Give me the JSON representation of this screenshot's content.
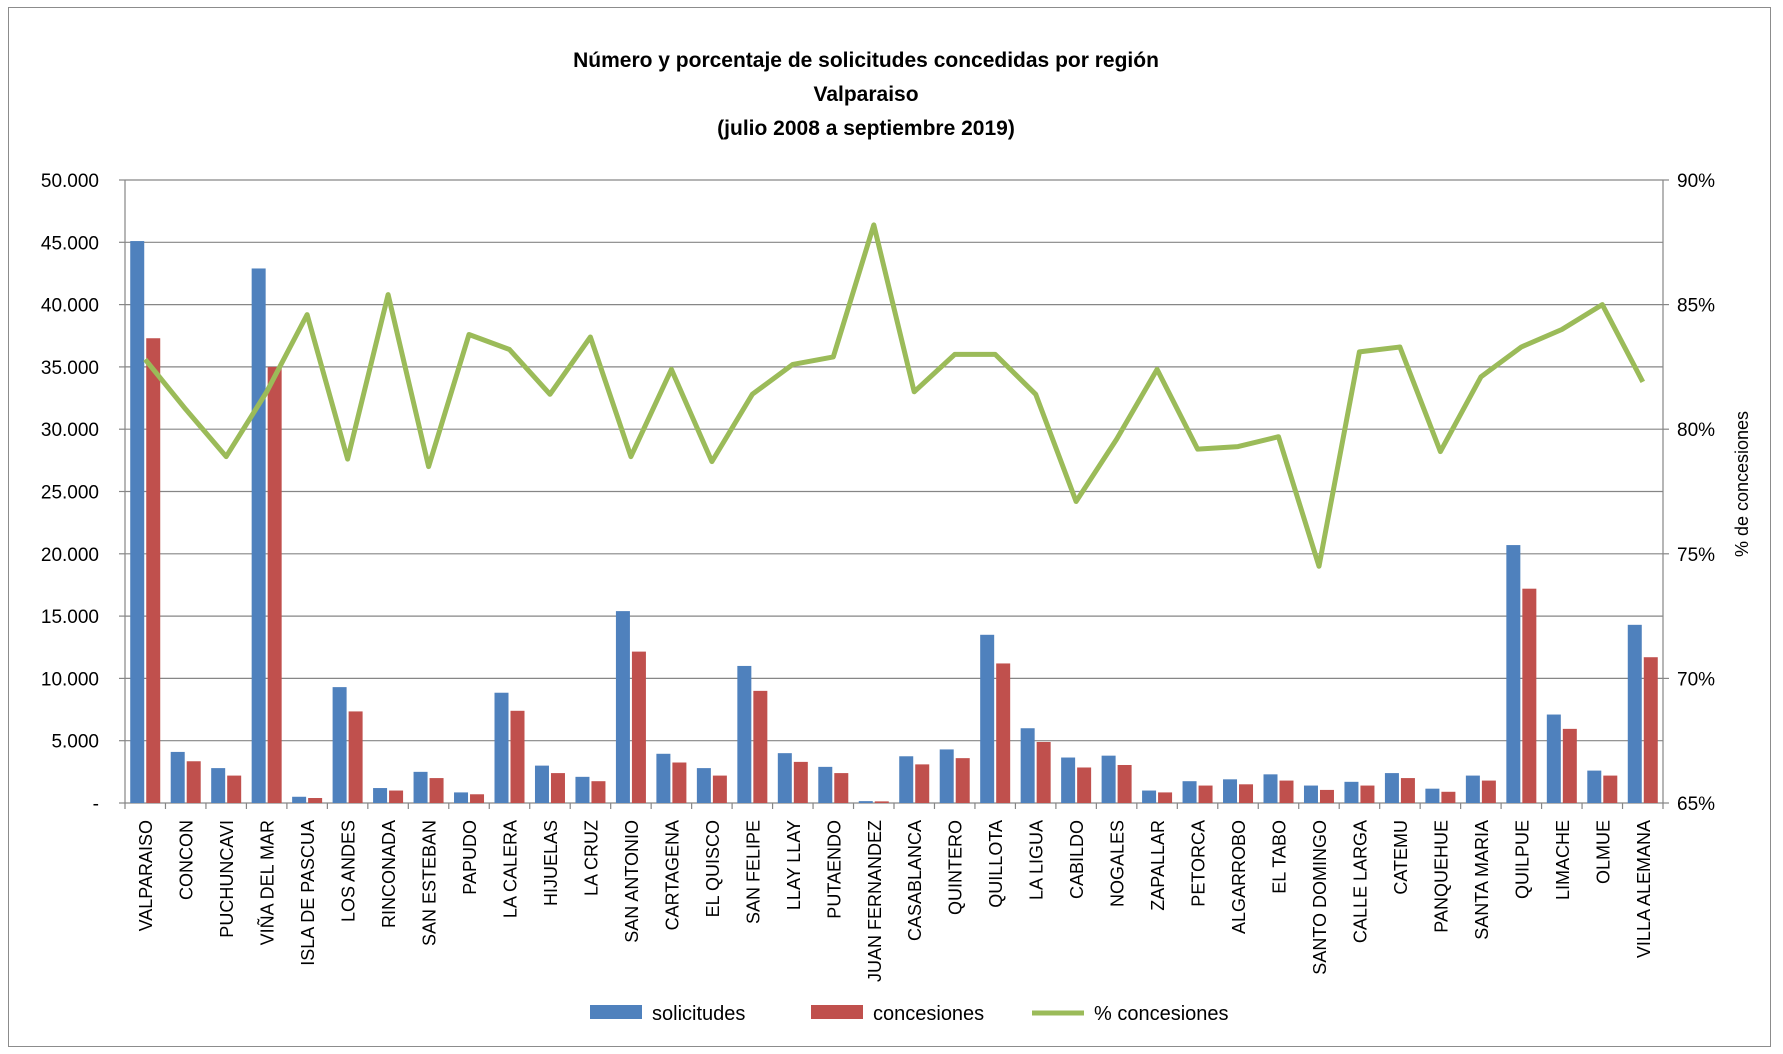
{
  "chart_data": {
    "type": "bar",
    "title": [
      "Número y porcentaje de solicitudes concedidas por región",
      "Valparaiso",
      "(julio 2008 a septiembre 2019)"
    ],
    "ylabel": "",
    "y2label": "% de concesiones",
    "ylim": [
      0,
      50000
    ],
    "y2lim": [
      65,
      90
    ],
    "y_ticks": [
      "-",
      "5.000",
      "10.000",
      "15.000",
      "20.000",
      "25.000",
      "30.000",
      "35.000",
      "40.000",
      "45.000",
      "50.000"
    ],
    "y2_ticks": [
      "65%",
      "70%",
      "75%",
      "80%",
      "85%",
      "90%"
    ],
    "grid": true,
    "legend_position": "bottom",
    "categories": [
      "VALPARAISO",
      "CONCON",
      "PUCHUNCAVI",
      "VIÑA DEL MAR",
      "ISLA DE PASCUA",
      "LOS ANDES",
      "RINCONADA",
      "SAN ESTEBAN",
      "PAPUDO",
      "LA CALERA",
      "HIJUELAS",
      "LA CRUZ",
      "SAN ANTONIO",
      "CARTAGENA",
      "EL QUISCO",
      "SAN FELIPE",
      "LLAY LLAY",
      "PUTAENDO",
      "JUAN FERNANDEZ",
      "CASABLANCA",
      "QUINTERO",
      "QUILLOTA",
      "LA LIGUA",
      "CABILDO",
      "NOGALES",
      "ZAPALLAR",
      "PETORCA",
      "ALGARROBO",
      "EL TABO",
      "SANTO DOMINGO",
      "CALLE LARGA",
      "CATEMU",
      "PANQUEHUE",
      "SANTA MARIA",
      "QUILPUE",
      "LIMACHE",
      "OLMUE",
      "VILLA ALEMANA"
    ],
    "series": [
      {
        "name": "solicitudes",
        "type": "bar",
        "axis": "left",
        "color": "#4f81bd",
        "values": [
          45100,
          4100,
          2800,
          42900,
          500,
          9300,
          1200,
          2500,
          850,
          8850,
          3000,
          2100,
          15400,
          3950,
          2800,
          11000,
          4000,
          2900,
          150,
          3750,
          4300,
          13500,
          6000,
          3650,
          3800,
          1000,
          1750,
          1900,
          2300,
          1400,
          1700,
          2400,
          1150,
          2200,
          20700,
          7100,
          2600,
          14300
        ]
      },
      {
        "name": "concesiones",
        "type": "bar",
        "axis": "left",
        "color": "#c0504d",
        "values": [
          37300,
          3350,
          2200,
          35000,
          400,
          7350,
          1000,
          2000,
          700,
          7400,
          2400,
          1750,
          12150,
          3250,
          2200,
          9000,
          3300,
          2400,
          130,
          3100,
          3600,
          11200,
          4900,
          2850,
          3050,
          850,
          1400,
          1500,
          1800,
          1050,
          1400,
          2000,
          900,
          1800,
          17200,
          5950,
          2200,
          11700
        ]
      },
      {
        "name": "% concesiones",
        "type": "line",
        "axis": "right",
        "color": "#9bbb59",
        "values": [
          82.8,
          80.8,
          78.9,
          81.5,
          84.6,
          78.8,
          85.4,
          78.5,
          83.8,
          83.2,
          81.4,
          83.7,
          78.9,
          82.4,
          78.7,
          81.4,
          82.6,
          82.9,
          88.2,
          81.5,
          83.0,
          83.0,
          81.4,
          77.1,
          79.6,
          82.4,
          79.2,
          79.3,
          79.7,
          74.5,
          83.1,
          83.3,
          79.1,
          82.1,
          83.3,
          84.0,
          85.0,
          81.9
        ]
      }
    ]
  }
}
